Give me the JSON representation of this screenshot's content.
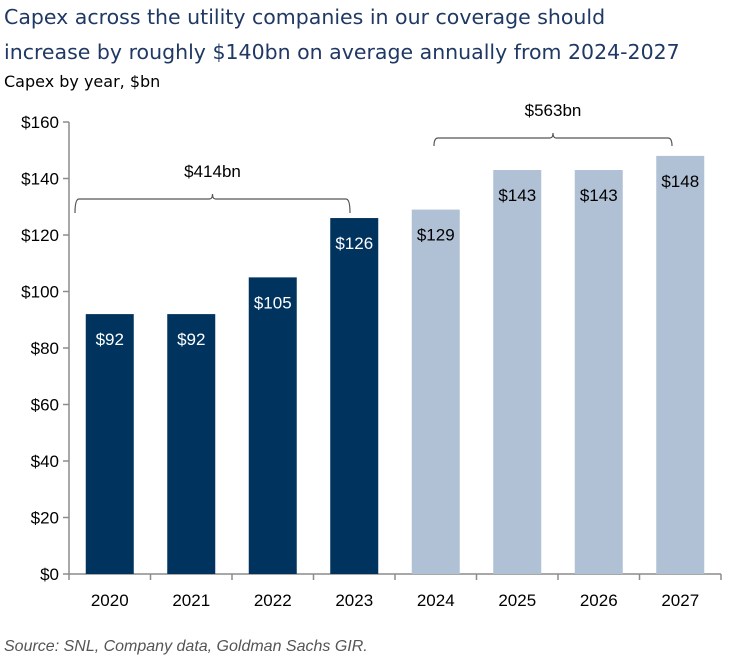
{
  "title_line1": "Capex across the utility companies in our coverage should",
  "title_line2": "increase by roughly $140bn on average annually from 2024-2027",
  "subtitle": "Capex by year, $bn",
  "source": "Source: SNL, Company data, Goldman Sachs GIR.",
  "chart_data": {
    "type": "bar",
    "categories": [
      "2020",
      "2021",
      "2022",
      "2023",
      "2024",
      "2025",
      "2026",
      "2027"
    ],
    "values": [
      92,
      92,
      105,
      126,
      129,
      143,
      143,
      148
    ],
    "value_labels": [
      "$92",
      "$92",
      "$105",
      "$126",
      "$129",
      "$143",
      "$143",
      "$148"
    ],
    "ylim": [
      0,
      160
    ],
    "yticks": [
      0,
      20,
      40,
      60,
      80,
      100,
      120,
      140,
      160
    ],
    "ytick_labels": [
      "$0",
      "$20",
      "$40",
      "$60",
      "$80",
      "$100",
      "$120",
      "$140",
      "$160"
    ],
    "xlabel": "",
    "ylabel": "",
    "grid": false,
    "series_colors": {
      "actual": "#00335e",
      "forecast": "#b0c1d6"
    },
    "actual_count": 4,
    "brackets": [
      {
        "label": "$414bn",
        "from": "2020",
        "to": "2023"
      },
      {
        "label": "$563bn",
        "from": "2024",
        "to": "2027"
      }
    ]
  }
}
